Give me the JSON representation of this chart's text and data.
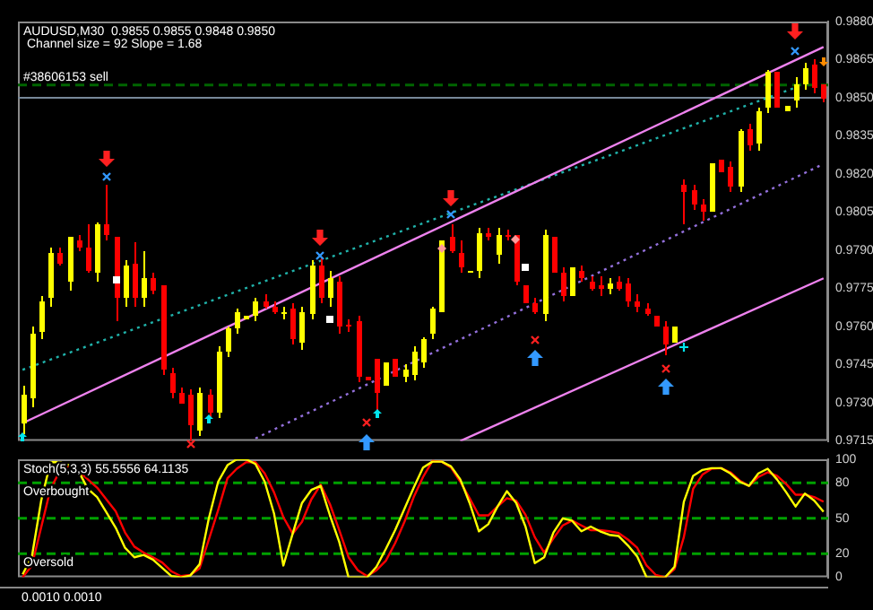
{
  "chart_data": [
    {
      "type": "candlestick",
      "title": "AUDUSD,M30  0.9855 0.9855 0.9848 0.9850",
      "subtitle": "Channel size = 92 Slope = 1.68",
      "categories": [
        null,
        null,
        null,
        null,
        null,
        null,
        null,
        null,
        null,
        null,
        null,
        null,
        null,
        null,
        null,
        null,
        null,
        null,
        null,
        null,
        null,
        null,
        null,
        null,
        null,
        null,
        null,
        null,
        null,
        null,
        null,
        null,
        null,
        null,
        null,
        null,
        null,
        null,
        null,
        null,
        null,
        null,
        null,
        null,
        null,
        null,
        null,
        null,
        null,
        null,
        null,
        null,
        null,
        null,
        null,
        null,
        null,
        null,
        null,
        null,
        null,
        null,
        null,
        null,
        null,
        null,
        null,
        null,
        null,
        null,
        null,
        null,
        null,
        null,
        null,
        null,
        null,
        null,
        null,
        null,
        null,
        null,
        null,
        null,
        null,
        null,
        null
      ],
      "ohlc": [
        [
          0.9722,
          0.9737,
          0.9718,
          0.9733
        ],
        [
          0.9732,
          0.976,
          0.9728,
          0.9757
        ],
        [
          0.9758,
          0.9772,
          0.9755,
          0.977
        ],
        [
          0.9771,
          0.9791,
          0.9768,
          0.9789
        ],
        [
          0.9789,
          0.9791,
          0.9784,
          0.9785
        ],
        [
          0.9778,
          0.9795,
          0.9774,
          0.9795
        ],
        [
          0.9794,
          0.9796,
          0.979,
          0.9791
        ],
        [
          0.9791,
          0.98,
          0.9781,
          0.9782
        ],
        [
          0.9781,
          0.9801,
          0.9778,
          0.98
        ],
        [
          0.98,
          0.9816,
          0.9794,
          0.9796
        ],
        [
          0.9795,
          0.9795,
          0.9762,
          0.9771
        ],
        [
          0.9771,
          0.9786,
          0.9768,
          0.9784
        ],
        [
          0.9785,
          0.9793,
          0.9768,
          0.9771
        ],
        [
          0.9771,
          0.979,
          0.9768,
          0.9779
        ],
        [
          0.9779,
          0.9781,
          0.9773,
          0.9774
        ],
        [
          0.9776,
          0.9776,
          0.9741,
          0.9743
        ],
        [
          0.9742,
          0.9744,
          0.9732,
          0.9734
        ],
        [
          0.9734,
          0.9736,
          0.973,
          0.973
        ],
        [
          0.9733,
          0.9735,
          0.9715,
          0.9721
        ],
        [
          0.9719,
          0.9736,
          0.9717,
          0.9734
        ],
        [
          0.9733,
          0.9735,
          0.9724,
          0.9726
        ],
        [
          0.9726,
          0.9752,
          0.9724,
          0.975
        ],
        [
          0.975,
          0.976,
          0.9748,
          0.9759
        ],
        [
          0.9759,
          0.9767,
          0.9757,
          0.9766
        ],
        [
          0.9763,
          0.9764,
          0.9763,
          0.9764
        ],
        [
          0.9764,
          0.9771,
          0.9762,
          0.977
        ],
        [
          0.977,
          0.9773,
          0.9767,
          0.9768
        ],
        [
          0.9768,
          0.977,
          0.9765,
          0.9766
        ],
        [
          0.9765,
          0.9768,
          0.9763,
          0.9766
        ],
        [
          0.9767,
          0.9769,
          0.9753,
          0.9755
        ],
        [
          0.9754,
          0.9768,
          0.9751,
          0.9766
        ],
        [
          0.9765,
          0.9786,
          0.9763,
          0.9784
        ],
        [
          0.9784,
          0.9787,
          0.9769,
          0.9771
        ],
        [
          0.9771,
          0.9782,
          0.9768,
          0.9779
        ],
        [
          0.9778,
          0.978,
          0.9757,
          0.976
        ],
        [
          0.9761,
          0.9763,
          0.9758,
          0.976
        ],
        [
          0.9762,
          0.9764,
          0.9738,
          0.974
        ],
        [
          0.974,
          0.974,
          0.9739,
          0.9739
        ],
        [
          0.9747,
          0.9747,
          0.9727,
          0.9734
        ],
        [
          0.9737,
          0.9746,
          0.9737,
          0.9746
        ],
        [
          0.9747,
          0.9747,
          0.974,
          0.974
        ],
        [
          0.974,
          0.9745,
          0.9738,
          0.9743
        ],
        [
          0.9741,
          0.9752,
          0.9739,
          0.975
        ],
        [
          0.9746,
          0.9756,
          0.9744,
          0.9755
        ],
        [
          0.9757,
          0.9768,
          0.9755,
          0.9767
        ],
        [
          0.9766,
          0.9794,
          0.9766,
          0.9794
        ],
        [
          0.9795,
          0.98,
          0.9789,
          0.979
        ],
        [
          0.9789,
          0.9794,
          0.9781,
          0.9783
        ],
        [
          0.9782,
          0.9782,
          0.9782,
          0.9782
        ],
        [
          0.9782,
          0.9799,
          0.9779,
          0.9797
        ],
        [
          0.9797,
          0.9799,
          0.9794,
          0.9795
        ],
        [
          0.9788,
          0.9799,
          0.9785,
          0.9796
        ],
        [
          0.9796,
          0.9798,
          0.9794,
          0.9795
        ],
        [
          0.9796,
          0.9796,
          0.9776,
          0.9778
        ],
        [
          0.9776,
          0.9776,
          0.9769,
          0.9769
        ],
        [
          0.9769,
          0.9771,
          0.9765,
          0.9766
        ],
        [
          0.9765,
          0.9798,
          0.9762,
          0.9796
        ],
        [
          0.9795,
          0.9795,
          0.9781,
          0.9781
        ],
        [
          0.9781,
          0.9783,
          0.977,
          0.9772
        ],
        [
          0.9772,
          0.9783,
          0.9772,
          0.9783
        ],
        [
          0.9782,
          0.9784,
          0.9778,
          0.9779
        ],
        [
          0.9778,
          0.978,
          0.9774,
          0.9775
        ],
        [
          0.9776,
          0.978,
          0.9772,
          0.9775
        ],
        [
          0.9775,
          0.9779,
          0.9773,
          0.9777
        ],
        [
          0.9778,
          0.978,
          0.9774,
          0.9775
        ],
        [
          0.9777,
          0.9779,
          0.9768,
          0.977
        ],
        [
          0.977,
          0.9773,
          0.9766,
          0.9768
        ],
        [
          0.9767,
          0.9769,
          0.9764,
          0.9765
        ],
        [
          0.9764,
          0.9764,
          0.976,
          0.976
        ],
        [
          0.976,
          0.9762,
          0.9749,
          0.9753
        ],
        [
          0.9754,
          0.976,
          0.9754,
          0.976
        ],
        [
          0.9816,
          0.9818,
          0.98,
          0.9813
        ],
        [
          0.9814,
          0.9816,
          0.9806,
          0.9808
        ],
        [
          0.9808,
          0.981,
          0.9802,
          0.9805
        ],
        [
          0.9805,
          0.9824,
          0.9805,
          0.9824
        ],
        [
          0.9826,
          0.9826,
          0.9821,
          0.9821
        ],
        [
          0.9823,
          0.9825,
          0.9813,
          0.9815
        ],
        [
          0.9815,
          0.9838,
          0.9813,
          0.9837
        ],
        [
          0.9838,
          0.984,
          0.9829,
          0.9831
        ],
        [
          0.9832,
          0.9846,
          0.9829,
          0.9845
        ],
        [
          0.9846,
          0.9861,
          0.9844,
          0.986
        ],
        [
          0.986,
          0.986,
          0.9846,
          0.9846
        ],
        [
          0.9845,
          0.9847,
          0.9845,
          0.9847
        ],
        [
          0.9849,
          0.9858,
          0.9846,
          0.9855
        ],
        [
          0.9855,
          0.9864,
          0.9853,
          0.9862
        ],
        [
          0.9863,
          0.9865,
          0.9852,
          0.9854
        ],
        [
          0.9855,
          0.9855,
          0.9848,
          0.985
        ]
      ],
      "colors": [
        "#ffff00",
        "#ffff00",
        "#ffff00",
        "#ffff00",
        "#ff0000",
        "#ffff00",
        "#ff0000",
        "#ff0000",
        "#ffff00",
        "#ff0000",
        "#ff0000",
        "#ffff00",
        "#ff0000",
        "#ffff00",
        "#ff0000",
        "#ff0000",
        "#ff0000",
        "#ff0000",
        "#ff0000",
        "#ffff00",
        "#ff0000",
        "#ffff00",
        "#ffff00",
        "#ffff00",
        "#ffff00",
        "#ffff00",
        "#ff0000",
        "#ff0000",
        "#ffff00",
        "#ff0000",
        "#ffff00",
        "#ffff00",
        "#ff0000",
        "#ffff00",
        "#ff0000",
        "#ff0000",
        "#ff0000",
        "#ff0000",
        "#ff0000",
        "#ffff00",
        "#ff0000",
        "#ffff00",
        "#ffff00",
        "#ffff00",
        "#ffff00",
        "#ffff00",
        "#ff0000",
        "#ff0000",
        "#ffff00",
        "#ffff00",
        "#ff0000",
        "#ffff00",
        "#ff0000",
        "#ff0000",
        "#ff0000",
        "#ff0000",
        "#ffff00",
        "#ff0000",
        "#ff0000",
        "#ffff00",
        "#ff0000",
        "#ff0000",
        "#ff0000",
        "#ffff00",
        "#ff0000",
        "#ff0000",
        "#ff0000",
        "#ff0000",
        "#ff0000",
        "#ff0000",
        "#ffff00",
        "#ff0000",
        "#ff0000",
        "#ff0000",
        "#ffff00",
        "#ff0000",
        "#ff0000",
        "#ffff00",
        "#ff0000",
        "#ffff00",
        "#ffff00",
        "#ff0000",
        "#ffff00",
        "#ffff00",
        "#ffff00",
        "#ff0000",
        "#ff0000"
      ],
      "series": [
        {
          "type": "line",
          "color": "#ee82ee",
          "values": [
            0.9722,
            null,
            null,
            null,
            null,
            null,
            null,
            null,
            null,
            null,
            null,
            null,
            null,
            null,
            null,
            null,
            null,
            null,
            null,
            null,
            null,
            null,
            null,
            null,
            null,
            null,
            null,
            null,
            null,
            null,
            null,
            null,
            null,
            null,
            null,
            null,
            null,
            null,
            null,
            null,
            null,
            null,
            null,
            null,
            null,
            null,
            null,
            null,
            null,
            null,
            null,
            null,
            null,
            null,
            null,
            null,
            null,
            null,
            null,
            null,
            null,
            null,
            null,
            null,
            null,
            null,
            null,
            null,
            null,
            null,
            null,
            null,
            null,
            null,
            null,
            null,
            null,
            null,
            null,
            null,
            null,
            null,
            null,
            null,
            null,
            null,
            0.987
          ]
        },
        {
          "type": "line",
          "color": "#ee82ee",
          "values": [
            null,
            null,
            null,
            null,
            null,
            null,
            null,
            null,
            null,
            null,
            null,
            null,
            null,
            null,
            null,
            null,
            null,
            null,
            null,
            null,
            null,
            null,
            null,
            null,
            null,
            null,
            null,
            null,
            null,
            null,
            null,
            null,
            null,
            null,
            null,
            null,
            null,
            null,
            null,
            null,
            null,
            null,
            null,
            null,
            null,
            null,
            null,
            0.9715,
            null,
            null,
            null,
            null,
            null,
            null,
            null,
            null,
            null,
            null,
            null,
            null,
            null,
            null,
            null,
            null,
            null,
            null,
            null,
            null,
            null,
            null,
            null,
            null,
            null,
            null,
            null,
            null,
            null,
            null,
            null,
            null,
            null,
            null,
            null,
            null,
            null,
            null,
            0.9779
          ]
        },
        {
          "type": "line",
          "color": "#20b2aa",
          "line_style": "dotted",
          "values": [
            0.9743,
            null,
            null,
            null,
            null,
            null,
            null,
            null,
            null,
            null,
            null,
            null,
            null,
            null,
            null,
            null,
            null,
            null,
            null,
            null,
            null,
            null,
            null,
            null,
            null,
            null,
            null,
            null,
            null,
            null,
            null,
            null,
            null,
            null,
            null,
            null,
            null,
            null,
            null,
            null,
            null,
            null,
            null,
            null,
            null,
            null,
            null,
            0.9806,
            null,
            null,
            null,
            null,
            null,
            null,
            null,
            null,
            null,
            null,
            null,
            null,
            null,
            null,
            null,
            null,
            null,
            null,
            null,
            null,
            null,
            null,
            null,
            null,
            null,
            null,
            null,
            null,
            null,
            null,
            null,
            null,
            null,
            null,
            null,
            0.9854,
            null,
            null,
            null
          ]
        },
        {
          "type": "line",
          "color": "#9370db",
          "line_style": "dotted",
          "values": [
            null,
            null,
            null,
            null,
            null,
            null,
            null,
            null,
            null,
            null,
            null,
            null,
            null,
            null,
            null,
            null,
            null,
            null,
            null,
            null,
            null,
            null,
            null,
            null,
            null,
            0.9716,
            null,
            null,
            null,
            null,
            null,
            null,
            null,
            null,
            null,
            null,
            null,
            null,
            null,
            null,
            null,
            null,
            null,
            null,
            null,
            null,
            null,
            null,
            null,
            null,
            null,
            null,
            null,
            null,
            null,
            null,
            null,
            null,
            null,
            null,
            null,
            null,
            null,
            null,
            null,
            null,
            null,
            null,
            null,
            null,
            null,
            null,
            null,
            null,
            null,
            null,
            null,
            null,
            null,
            null,
            null,
            null,
            null,
            null,
            null,
            null,
            0.9824
          ]
        }
      ],
      "ref_lines": [
        {
          "axis": "y",
          "value": 0.9855,
          "label": "#38606153 sell",
          "color": "#006400",
          "line_style": "dashed"
        },
        {
          "axis": "y",
          "value": 0.985,
          "label": null,
          "color": "#778899",
          "line_style": "solid"
        }
      ],
      "ylim": [
        0.9715,
        0.988
      ],
      "yticks": [
        {
          "value": 0.9715,
          "label": "0.9715"
        },
        {
          "value": 0.973,
          "label": "0.9730"
        },
        {
          "value": 0.9745,
          "label": "0.9745"
        },
        {
          "value": 0.976,
          "label": "0.9760"
        },
        {
          "value": 0.9775,
          "label": "0.9775"
        },
        {
          "value": 0.979,
          "label": "0.9790"
        },
        {
          "value": 0.9805,
          "label": "0.9805"
        },
        {
          "value": 0.982,
          "label": "0.9820"
        },
        {
          "value": 0.9835,
          "label": "0.9835"
        },
        {
          "value": 0.985,
          "label": "0.9850"
        },
        {
          "value": 0.9865,
          "label": "0.9865"
        },
        {
          "value": 0.988,
          "label": "0.9880"
        }
      ],
      "tick_labels": "y",
      "legend": false,
      "grid": false
    },
    {
      "type": "line",
      "title": "Stoch(5,3,3) 55.5556 64.1135",
      "categories": [
        null,
        null,
        null,
        null,
        null,
        null,
        null,
        null,
        null,
        null,
        null,
        null,
        null,
        null,
        null,
        null,
        null,
        null,
        null,
        null,
        null,
        null,
        null,
        null,
        null,
        null,
        null,
        null,
        null,
        null,
        null,
        null,
        null,
        null,
        null,
        null,
        null,
        null,
        null,
        null,
        null,
        null,
        null,
        null,
        null,
        null,
        null,
        null,
        null,
        null,
        null,
        null,
        null,
        null,
        null,
        null,
        null,
        null,
        null,
        null,
        null,
        null,
        null,
        null,
        null,
        null,
        null,
        null,
        null,
        null,
        null,
        null,
        null,
        null,
        null,
        null,
        null,
        null,
        null,
        null,
        null,
        null,
        null,
        null,
        null,
        null,
        null
      ],
      "series": [
        {
          "color": "#ffff00",
          "values": [
            2.5,
            17.5,
            65,
            97.5,
            97.5,
            95,
            90,
            75,
            68,
            55,
            42,
            25,
            17,
            19,
            15,
            8,
            1,
            0,
            1.5,
            11,
            50,
            81,
            95,
            100,
            100,
            96,
            81,
            54,
            10,
            37,
            63,
            74,
            77.5,
            52.5,
            30,
            0,
            0,
            0,
            9,
            24,
            40,
            58,
            76,
            93,
            98,
            98,
            94,
            83,
            63,
            39,
            45,
            60,
            73,
            63,
            43,
            12,
            17,
            38,
            50,
            48,
            39,
            43,
            39,
            36,
            35,
            27,
            17.5,
            0,
            0,
            0,
            9,
            64,
            86,
            91,
            92.5,
            92.5,
            88,
            81,
            77.5,
            88,
            92,
            83,
            72,
            60,
            71,
            65,
            55.5556
          ]
        },
        {
          "color": "#ff0000",
          "values": [
            0,
            10,
            42.5,
            75,
            90,
            94.5,
            90,
            83,
            76,
            66,
            56,
            38,
            26,
            21,
            17,
            12.5,
            5,
            1,
            2,
            7.5,
            32,
            57,
            84,
            92,
            97.5,
            97.5,
            88,
            72,
            51,
            37,
            47,
            66,
            78.5,
            62,
            40,
            17,
            6,
            1,
            6,
            14,
            29,
            47,
            68,
            85,
            98.5,
            98,
            93,
            81,
            67,
            52.5,
            52.5,
            60,
            67,
            65,
            53,
            34,
            21,
            33,
            44,
            48,
            44,
            40,
            40,
            39,
            37.5,
            32,
            25,
            10,
            2,
            0,
            7,
            34,
            75,
            87,
            92,
            92.5,
            89,
            82,
            77.5,
            85,
            89,
            86,
            79,
            70,
            70,
            68,
            64.1135
          ]
        }
      ],
      "ref_lines": [
        {
          "axis": "y",
          "value": 80,
          "label": "Overbought",
          "color": "#00a000",
          "line_style": "dashed"
        },
        {
          "axis": "y",
          "value": 50,
          "label": null,
          "color": "#00a000",
          "line_style": "dashed"
        },
        {
          "axis": "y",
          "value": 20,
          "label": "Oversold",
          "color": "#00a000",
          "line_style": "dashed"
        }
      ],
      "ylim": [
        0,
        100
      ],
      "yticks": [
        0,
        20,
        50,
        80,
        100
      ],
      "tick_labels": "y",
      "legend": false,
      "grid": false
    },
    {
      "type": "other",
      "annotations": [
        "0.0010 0.0010"
      ]
    }
  ]
}
